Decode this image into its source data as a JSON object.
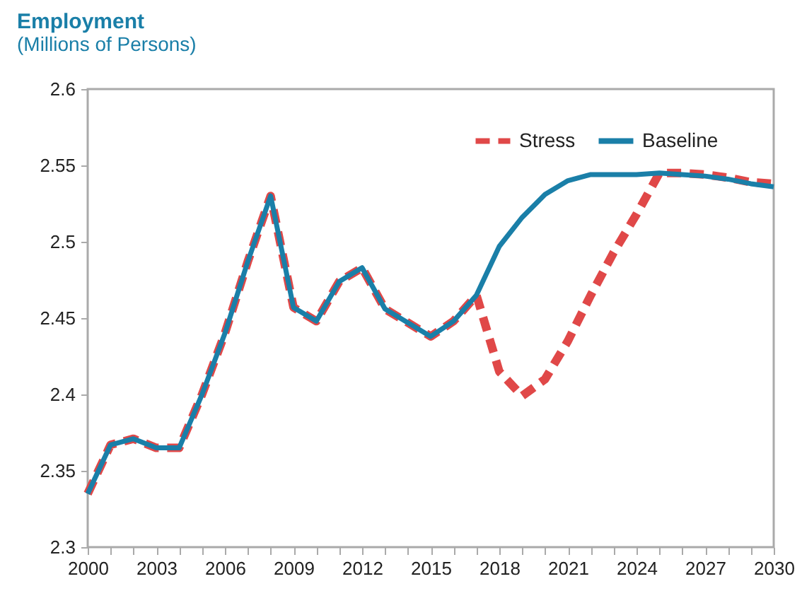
{
  "chart_data": {
    "type": "line",
    "title": "Employment",
    "subtitle": "(Millions of Persons)",
    "x": [
      2000,
      2001,
      2002,
      2003,
      2004,
      2005,
      2006,
      2007,
      2008,
      2009,
      2010,
      2011,
      2012,
      2013,
      2014,
      2015,
      2016,
      2017,
      2018,
      2019,
      2020,
      2021,
      2022,
      2023,
      2024,
      2025,
      2026,
      2027,
      2028,
      2029,
      2030
    ],
    "series": [
      {
        "name": "Stress",
        "color": "#e04848",
        "line_style": "dashed",
        "values": [
          2.335,
          2.367,
          2.371,
          2.365,
          2.365,
          2.4,
          2.44,
          2.487,
          2.53,
          2.457,
          2.448,
          2.474,
          2.483,
          2.456,
          2.447,
          2.438,
          2.448,
          2.465,
          2.415,
          2.399,
          2.41,
          2.435,
          2.465,
          2.493,
          2.518,
          2.545,
          2.545,
          2.544,
          2.542,
          2.539,
          2.538
        ]
      },
      {
        "name": "Baseline",
        "color": "#1a7fa8",
        "line_style": "solid",
        "values": [
          2.335,
          2.367,
          2.371,
          2.365,
          2.365,
          2.4,
          2.44,
          2.487,
          2.53,
          2.457,
          2.448,
          2.474,
          2.483,
          2.456,
          2.447,
          2.438,
          2.448,
          2.465,
          2.497,
          2.516,
          2.531,
          2.54,
          2.544,
          2.544,
          2.544,
          2.545,
          2.544,
          2.543,
          2.541,
          2.538,
          2.536
        ]
      }
    ],
    "xlim": [
      2000,
      2030
    ],
    "xticks": [
      2000,
      {
        "value": 2001,
        "label": null
      },
      {
        "value": 2002,
        "label": null
      },
      2003,
      {
        "value": 2004,
        "label": null
      },
      {
        "value": 2005,
        "label": null
      },
      2006,
      {
        "value": 2007,
        "label": null
      },
      {
        "value": 2008,
        "label": null
      },
      2009,
      {
        "value": 2010,
        "label": null
      },
      {
        "value": 2011,
        "label": null
      },
      2012,
      {
        "value": 2013,
        "label": null
      },
      {
        "value": 2014,
        "label": null
      },
      2015,
      {
        "value": 2016,
        "label": null
      },
      {
        "value": 2017,
        "label": null
      },
      2018,
      {
        "value": 2019,
        "label": null
      },
      {
        "value": 2020,
        "label": null
      },
      2021,
      {
        "value": 2022,
        "label": null
      },
      {
        "value": 2023,
        "label": null
      },
      2024,
      {
        "value": 2025,
        "label": null
      },
      {
        "value": 2026,
        "label": null
      },
      2027,
      {
        "value": 2028,
        "label": null
      },
      {
        "value": 2029,
        "label": null
      },
      2030
    ],
    "ylim": [
      2.3,
      2.6
    ],
    "yticks": [
      2.3,
      2.35,
      2.4,
      2.45,
      2.5,
      2.55,
      2.6
    ],
    "grid": false,
    "legend": "top right"
  }
}
